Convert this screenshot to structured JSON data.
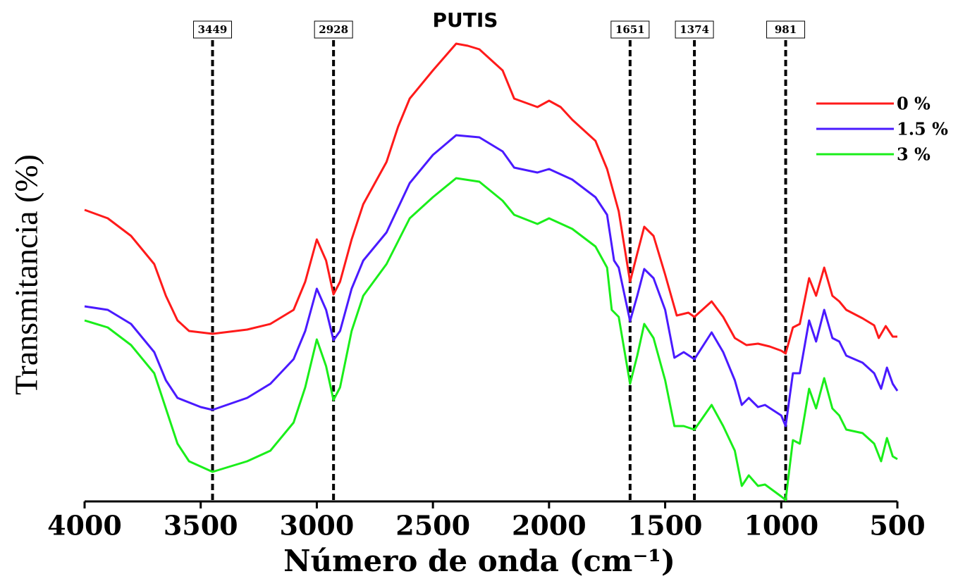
{
  "chart_data": {
    "type": "line",
    "title": "PUTIS",
    "x_label": "Número de onda (cm⁻¹)",
    "y_label": "Transmitancia (%)",
    "xlim": [
      4000,
      500
    ],
    "xticks": [
      4000,
      3500,
      3000,
      2500,
      2000,
      1500,
      1000,
      500
    ],
    "ylim": [
      0,
      712
    ],
    "vlines": [
      3449,
      2928,
      1651,
      1374,
      981
    ],
    "legend": "upper right",
    "series": [
      {
        "name": "0 %",
        "color": "#ff1a1a",
        "x": [
          4000,
          3900,
          3800,
          3700,
          3650,
          3600,
          3550,
          3449,
          3300,
          3200,
          3100,
          3050,
          3000,
          2960,
          2928,
          2900,
          2850,
          2800,
          2750,
          2700,
          2650,
          2600,
          2500,
          2400,
          2350,
          2300,
          2200,
          2150,
          2050,
          2000,
          1950,
          1900,
          1800,
          1750,
          1700,
          1651,
          1620,
          1590,
          1550,
          1500,
          1450,
          1400,
          1374,
          1300,
          1250,
          1200,
          1150,
          1100,
          1050,
          1000,
          981,
          950,
          920,
          880,
          850,
          815,
          780,
          750,
          720,
          650,
          600,
          580,
          550,
          520,
          500
        ],
        "values": [
          414,
          402,
          377,
          337,
          292,
          257,
          242,
          238,
          244,
          252,
          272,
          312,
          372,
          342,
          294,
          312,
          372,
          422,
          452,
          482,
          532,
          572,
          612,
          650,
          647,
          642,
          612,
          572,
          560,
          569,
          560,
          542,
          512,
          472,
          412,
          312,
          352,
          390,
          377,
          322,
          264,
          268,
          262,
          284,
          262,
          232,
          222,
          224,
          220,
          214,
          210,
          247,
          252,
          317,
          292,
          332,
          292,
          284,
          272,
          260,
          250,
          232,
          249,
          234,
          234
        ]
      },
      {
        "name": "1.5 %",
        "color": "#4a1aff",
        "x": [
          4000,
          3900,
          3800,
          3700,
          3650,
          3600,
          3500,
          3449,
          3300,
          3200,
          3100,
          3050,
          3000,
          2960,
          2928,
          2900,
          2850,
          2800,
          2700,
          2600,
          2500,
          2400,
          2300,
          2200,
          2150,
          2050,
          2000,
          1900,
          1800,
          1750,
          1720,
          1700,
          1651,
          1620,
          1590,
          1550,
          1500,
          1460,
          1420,
          1374,
          1300,
          1250,
          1200,
          1170,
          1140,
          1100,
          1070,
          1000,
          981,
          950,
          920,
          880,
          850,
          815,
          780,
          750,
          720,
          650,
          600,
          570,
          545,
          520,
          500
        ],
        "values": [
          277,
          272,
          252,
          212,
          172,
          147,
          134,
          130,
          147,
          167,
          202,
          242,
          302,
          272,
          229,
          242,
          302,
          342,
          382,
          452,
          492,
          520,
          517,
          497,
          474,
          467,
          472,
          457,
          432,
          407,
          342,
          332,
          256,
          292,
          330,
          317,
          272,
          204,
          212,
          202,
          240,
          212,
          172,
          137,
          147,
          134,
          137,
          122,
          107,
          182,
          182,
          257,
          227,
          272,
          232,
          227,
          207,
          197,
          182,
          160,
          190,
          167,
          157
        ]
      },
      {
        "name": "3 %",
        "color": "#1aee1a",
        "x": [
          4000,
          3900,
          3800,
          3700,
          3650,
          3600,
          3550,
          3449,
          3300,
          3200,
          3100,
          3050,
          3000,
          2960,
          2928,
          2900,
          2850,
          2800,
          2700,
          2600,
          2500,
          2400,
          2300,
          2200,
          2150,
          2050,
          2000,
          1900,
          1800,
          1750,
          1730,
          1700,
          1651,
          1620,
          1590,
          1550,
          1500,
          1460,
          1420,
          1374,
          1300,
          1250,
          1200,
          1170,
          1140,
          1100,
          1070,
          1000,
          981,
          950,
          920,
          880,
          850,
          815,
          780,
          750,
          720,
          650,
          600,
          570,
          545,
          520,
          500
        ],
        "values": [
          257,
          247,
          222,
          182,
          132,
          82,
          57,
          42,
          57,
          72,
          112,
          162,
          230,
          192,
          144,
          162,
          242,
          292,
          337,
          402,
          432,
          459,
          454,
          427,
          407,
          394,
          402,
          387,
          362,
          332,
          272,
          262,
          167,
          207,
          252,
          232,
          172,
          107,
          107,
          102,
          137,
          107,
          72,
          22,
          37,
          22,
          24,
          7,
          2,
          87,
          82,
          160,
          132,
          175,
          132,
          122,
          102,
          97,
          82,
          57,
          90,
          64,
          60
        ]
      }
    ]
  }
}
